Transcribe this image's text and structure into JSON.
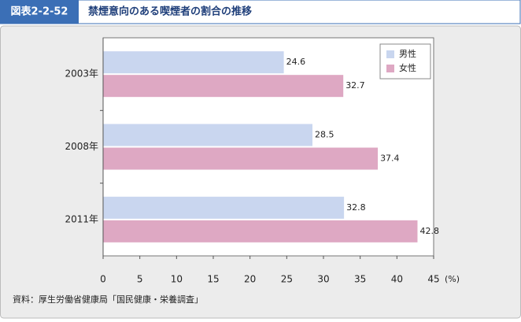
{
  "chart_data": {
    "type": "hbar",
    "figure_label": "図表2-2-52",
    "title": "禁煙意向のある喫煙者の割合の推移",
    "categories": [
      "2003年",
      "2008年",
      "2011年"
    ],
    "series": [
      {
        "name": "男性",
        "color": "#c9d6ef",
        "values": [
          24.6,
          28.5,
          32.8
        ]
      },
      {
        "name": "女性",
        "color": "#dea8c3",
        "values": [
          32.7,
          37.4,
          42.8
        ]
      }
    ],
    "xlim": [
      0,
      45
    ],
    "xticks": [
      0,
      5,
      10,
      15,
      20,
      25,
      30,
      35,
      40,
      45
    ],
    "x_label": "(%)",
    "legend": "upper right",
    "source": "資料：厚生労働省健康局「国民健康・栄養調査」"
  }
}
